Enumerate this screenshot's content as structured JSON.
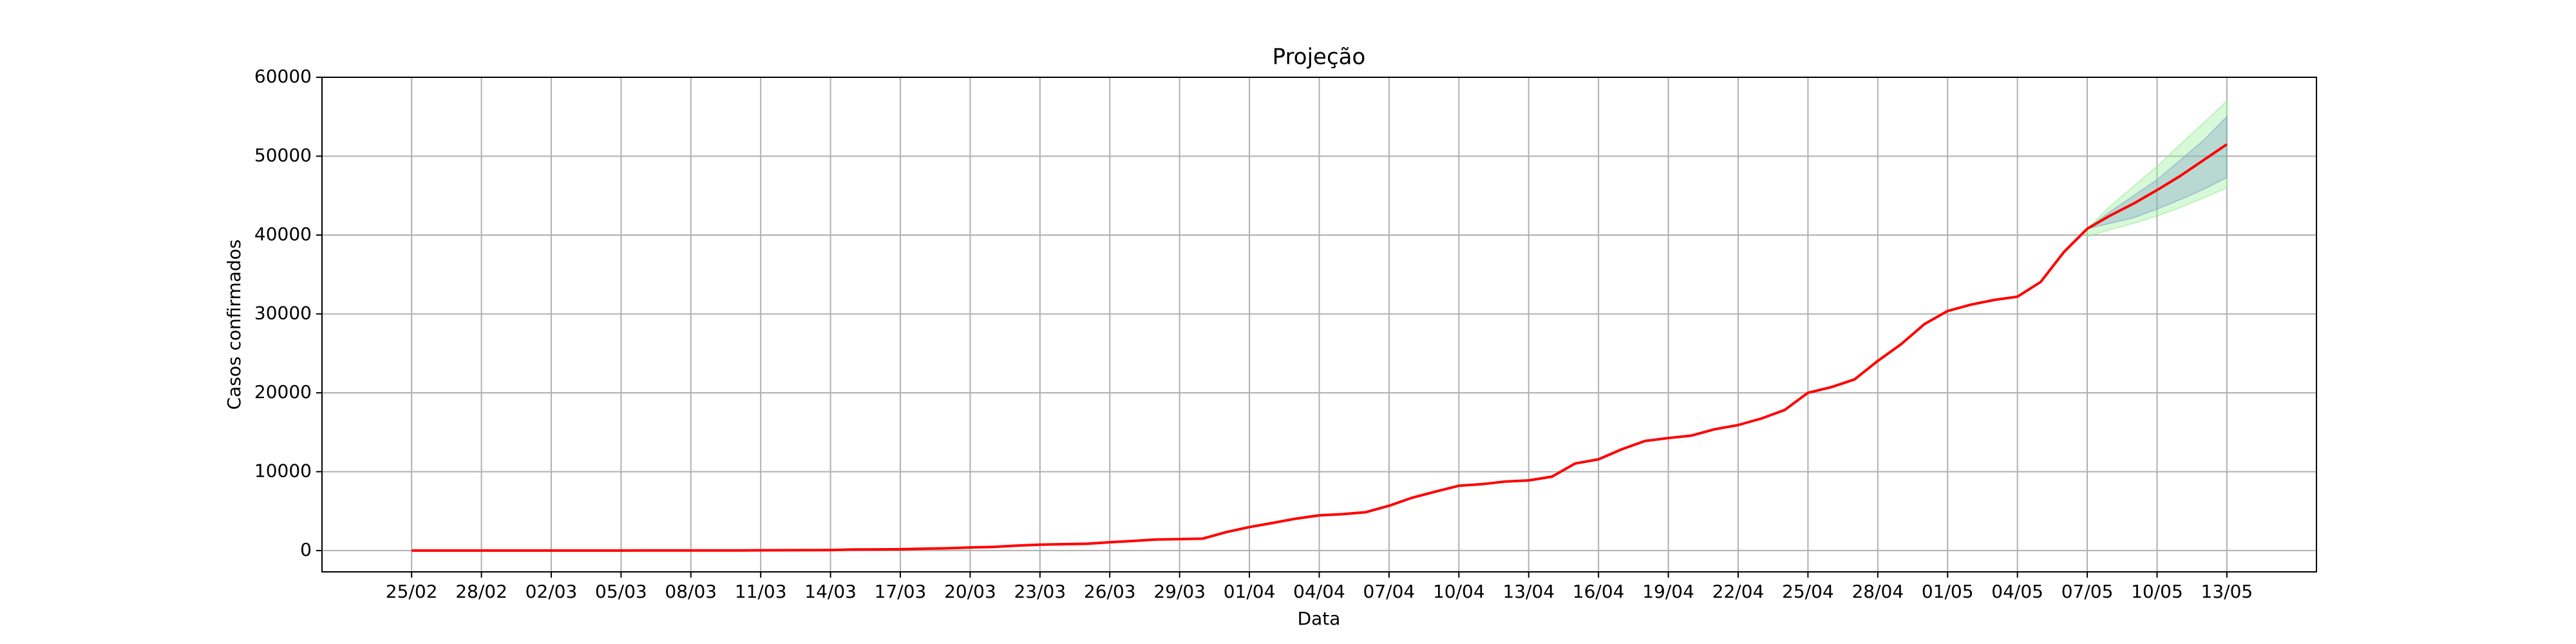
{
  "chart_data": {
    "type": "line",
    "title": "Projeção",
    "x_label": "Data",
    "y_label": "Casos confirmados",
    "categories": [
      "25/02",
      null,
      null,
      "28/02",
      null,
      null,
      "02/03",
      null,
      null,
      "05/03",
      null,
      null,
      "08/03",
      null,
      null,
      "11/03",
      null,
      null,
      "14/03",
      null,
      null,
      "17/03",
      null,
      null,
      "20/03",
      null,
      null,
      "23/03",
      null,
      null,
      "26/03",
      null,
      null,
      "29/03",
      null,
      null,
      "01/04",
      null,
      null,
      "04/04",
      null,
      null,
      "07/04",
      null,
      null,
      "10/04",
      null,
      null,
      "13/04",
      null,
      null,
      "16/04",
      null,
      null,
      "19/04",
      null,
      null,
      "22/04",
      null,
      null,
      "25/04",
      null,
      null,
      "28/04",
      null,
      null,
      "01/05",
      null,
      null,
      "04/05",
      null,
      null,
      "07/05",
      null,
      null,
      "10/05",
      null,
      null,
      "13/05"
    ],
    "series": [
      {
        "color": "#ff0000",
        "values": [
          1,
          1,
          2,
          2,
          2,
          2,
          2,
          2,
          3,
          6,
          10,
          13,
          16,
          16,
          19,
          30,
          42,
          56,
          65,
          136,
          152,
          164,
          240,
          286,
          396,
          459,
          631,
          745,
          810,
          862,
          1052,
          1223,
          1406,
          1451,
          1517,
          2339,
          2981,
          3506,
          4048,
          4466,
          4620,
          4866,
          5682,
          6708,
          7480,
          8216,
          8419,
          8755,
          8895,
          9371,
          11043,
          11568,
          12841,
          13894,
          14267,
          14580,
          15385,
          15914,
          16740,
          17826,
          20004,
          20715,
          21696,
          24041,
          26158,
          28698,
          30374,
          31174,
          31772,
          32187,
          34053,
          37853,
          40800,
          42500,
          44000,
          45700,
          47500,
          49500,
          51500
        ]
      }
    ],
    "bands": [
      {
        "color": "#90ee90",
        "lower": [
          null,
          null,
          null,
          null,
          null,
          null,
          null,
          null,
          null,
          null,
          null,
          null,
          null,
          null,
          null,
          null,
          null,
          null,
          null,
          null,
          null,
          null,
          null,
          null,
          null,
          null,
          null,
          null,
          null,
          null,
          null,
          null,
          null,
          null,
          null,
          null,
          null,
          null,
          null,
          null,
          null,
          null,
          null,
          null,
          null,
          null,
          null,
          null,
          null,
          null,
          null,
          null,
          null,
          null,
          null,
          null,
          null,
          null,
          null,
          null,
          null,
          null,
          null,
          null,
          null,
          null,
          null,
          null,
          null,
          null,
          null,
          null,
          39800,
          40700,
          41500,
          42400,
          43500,
          44700,
          46000
        ],
        "upper": [
          null,
          null,
          null,
          null,
          null,
          null,
          null,
          null,
          null,
          null,
          null,
          null,
          null,
          null,
          null,
          null,
          null,
          null,
          null,
          null,
          null,
          null,
          null,
          null,
          null,
          null,
          null,
          null,
          null,
          null,
          null,
          null,
          null,
          null,
          null,
          null,
          null,
          null,
          null,
          null,
          null,
          null,
          null,
          null,
          null,
          null,
          null,
          null,
          null,
          null,
          null,
          null,
          null,
          null,
          null,
          null,
          null,
          null,
          null,
          null,
          null,
          null,
          null,
          null,
          null,
          null,
          null,
          null,
          null,
          null,
          null,
          null,
          40800,
          43700,
          46200,
          48700,
          51500,
          54200,
          57000
        ]
      },
      {
        "color": "#7f9fc8",
        "lower": [
          null,
          null,
          null,
          null,
          null,
          null,
          null,
          null,
          null,
          null,
          null,
          null,
          null,
          null,
          null,
          null,
          null,
          null,
          null,
          null,
          null,
          null,
          null,
          null,
          null,
          null,
          null,
          null,
          null,
          null,
          null,
          null,
          null,
          null,
          null,
          null,
          null,
          null,
          null,
          null,
          null,
          null,
          null,
          null,
          null,
          null,
          null,
          null,
          null,
          null,
          null,
          null,
          null,
          null,
          null,
          null,
          null,
          null,
          null,
          null,
          null,
          null,
          null,
          null,
          null,
          null,
          null,
          null,
          null,
          null,
          null,
          null,
          40800,
          41500,
          42200,
          43300,
          44500,
          45800,
          47300
        ],
        "upper": [
          null,
          null,
          null,
          null,
          null,
          null,
          null,
          null,
          null,
          null,
          null,
          null,
          null,
          null,
          null,
          null,
          null,
          null,
          null,
          null,
          null,
          null,
          null,
          null,
          null,
          null,
          null,
          null,
          null,
          null,
          null,
          null,
          null,
          null,
          null,
          null,
          null,
          null,
          null,
          null,
          null,
          null,
          null,
          null,
          null,
          null,
          null,
          null,
          null,
          null,
          null,
          null,
          null,
          null,
          null,
          null,
          null,
          null,
          null,
          null,
          null,
          null,
          null,
          null,
          null,
          null,
          null,
          null,
          null,
          null,
          null,
          null,
          40800,
          43000,
          45000,
          47000,
          49500,
          52000,
          55000
        ]
      }
    ],
    "ylim": [
      -2700,
      60000
    ],
    "yticks": [
      0,
      10000,
      20000,
      30000,
      40000,
      50000,
      60000
    ],
    "grid": true
  }
}
